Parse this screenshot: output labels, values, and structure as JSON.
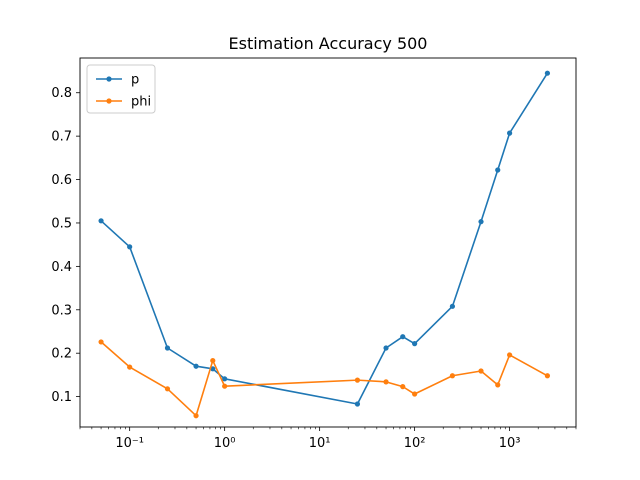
{
  "chart_data": {
    "type": "line",
    "title": "Estimation Accuracy 500",
    "xlabel": "",
    "ylabel": "",
    "xscale": "log",
    "xlim": [
      0.03,
      5000
    ],
    "ylim": [
      0.03,
      0.88
    ],
    "x_ticks": [
      {
        "value": 0.1,
        "label": "10⁻¹"
      },
      {
        "value": 1,
        "label": "10⁰"
      },
      {
        "value": 10,
        "label": "10¹"
      },
      {
        "value": 100,
        "label": "10²"
      },
      {
        "value": 1000,
        "label": "10³"
      }
    ],
    "y_ticks": [
      {
        "value": 0.1,
        "label": "0.1"
      },
      {
        "value": 0.2,
        "label": "0.2"
      },
      {
        "value": 0.3,
        "label": "0.3"
      },
      {
        "value": 0.4,
        "label": "0.4"
      },
      {
        "value": 0.5,
        "label": "0.5"
      },
      {
        "value": 0.6,
        "label": "0.6"
      },
      {
        "value": 0.7,
        "label": "0.7"
      },
      {
        "value": 0.8,
        "label": "0.8"
      }
    ],
    "grid": false,
    "legend_position": "upper-left",
    "series": [
      {
        "name": "p",
        "color": "#1f77b4",
        "x": [
          0.05,
          0.1,
          0.25,
          0.5,
          0.75,
          1,
          25,
          50,
          75,
          100,
          250,
          500,
          750,
          1000,
          2500
        ],
        "y": [
          0.505,
          0.445,
          0.212,
          0.17,
          0.164,
          0.141,
          0.083,
          0.212,
          0.238,
          0.222,
          0.308,
          0.503,
          0.622,
          0.707,
          0.845
        ]
      },
      {
        "name": "phi",
        "color": "#ff7f0e",
        "x": [
          0.05,
          0.1,
          0.25,
          0.5,
          0.75,
          1,
          25,
          50,
          75,
          100,
          250,
          500,
          750,
          1000,
          2500
        ],
        "y": [
          0.226,
          0.168,
          0.118,
          0.056,
          0.183,
          0.124,
          0.138,
          0.134,
          0.123,
          0.106,
          0.148,
          0.159,
          0.127,
          0.196,
          0.148
        ]
      }
    ]
  }
}
